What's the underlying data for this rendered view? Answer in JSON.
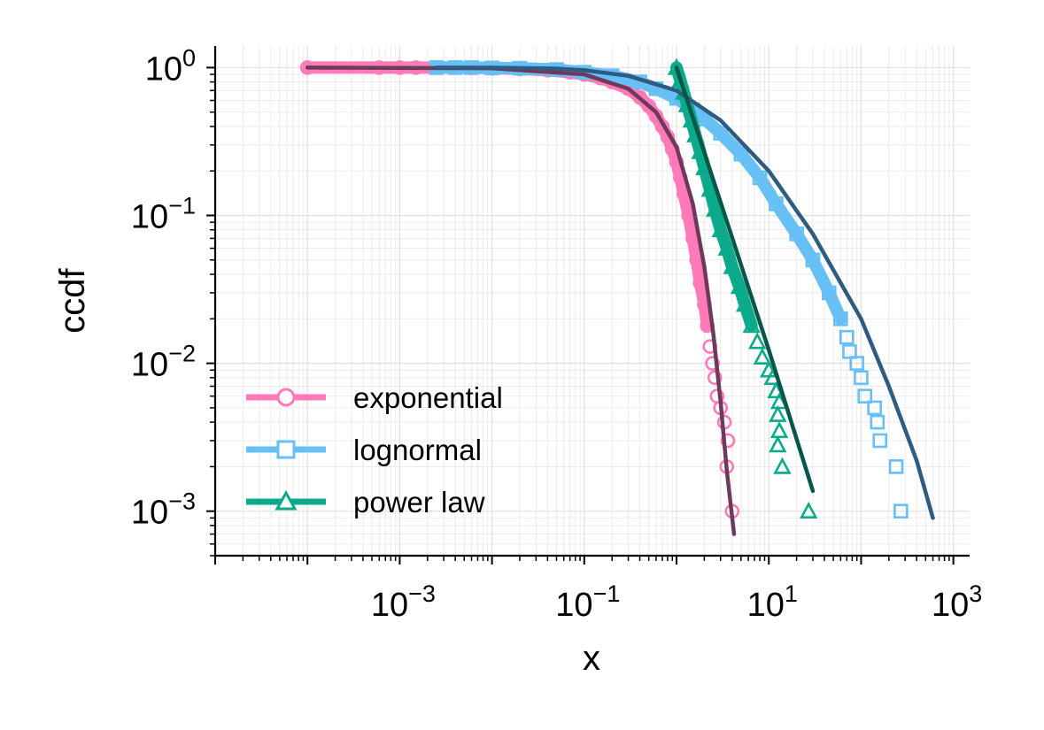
{
  "chart_data": {
    "type": "scatter",
    "xlabel": "x",
    "ylabel": "ccdf",
    "xscale": "log",
    "yscale": "log",
    "xlim": [
      1e-05,
      1500
    ],
    "ylim": [
      0.0005,
      1.4
    ],
    "x_ticks": [
      {
        "base": "10",
        "exp": "−3",
        "value": 0.001
      },
      {
        "base": "10",
        "exp": "−1",
        "value": 0.1
      },
      {
        "base": "10",
        "exp": "1",
        "value": 10
      },
      {
        "base": "10",
        "exp": "3",
        "value": 1000
      }
    ],
    "y_ticks": [
      {
        "base": "10",
        "exp": "0",
        "value": 1
      },
      {
        "base": "10",
        "exp": "−1",
        "value": 0.1
      },
      {
        "base": "10",
        "exp": "−2",
        "value": 0.01
      },
      {
        "base": "10",
        "exp": "−3",
        "value": 0.001
      }
    ],
    "grid": true,
    "legend_position": "lower-left",
    "series": [
      {
        "name": "exponential",
        "marker": "circle",
        "color": "#ff7ab8",
        "fit_color": "#6e3a5c",
        "points": [
          [
            0.0001,
            1.0
          ],
          [
            0.0006,
            1.0
          ],
          [
            0.001,
            1.0
          ],
          [
            0.0015,
            1.0
          ],
          [
            0.0025,
            1.0
          ],
          [
            0.004,
            1.0
          ],
          [
            0.006,
            0.998
          ],
          [
            0.01,
            0.99
          ],
          [
            0.02,
            0.98
          ],
          [
            0.04,
            0.96
          ],
          [
            0.07,
            0.93
          ],
          [
            0.1,
            0.9
          ],
          [
            0.15,
            0.85
          ],
          [
            0.2,
            0.8
          ],
          [
            0.3,
            0.72
          ],
          [
            0.4,
            0.63
          ],
          [
            0.5,
            0.55
          ],
          [
            0.6,
            0.47
          ],
          [
            0.7,
            0.4
          ],
          [
            0.8,
            0.34
          ],
          [
            0.9,
            0.28
          ],
          [
            1.0,
            0.23
          ],
          [
            1.1,
            0.18
          ],
          [
            1.2,
            0.14
          ],
          [
            1.35,
            0.1
          ],
          [
            1.5,
            0.07
          ],
          [
            1.65,
            0.05
          ],
          [
            1.8,
            0.035
          ],
          [
            2.0,
            0.025
          ],
          [
            2.15,
            0.018
          ],
          [
            2.3,
            0.013
          ],
          [
            2.45,
            0.01
          ],
          [
            2.6,
            0.008
          ],
          [
            2.75,
            0.006
          ],
          [
            3.0,
            0.005
          ],
          [
            3.3,
            0.004
          ],
          [
            3.6,
            0.003
          ],
          [
            3.5,
            0.002
          ],
          [
            4.0,
            0.001
          ]
        ],
        "fit": [
          [
            0.0001,
            1.0
          ],
          [
            0.01,
            0.99
          ],
          [
            0.1,
            0.9
          ],
          [
            0.3,
            0.72
          ],
          [
            0.6,
            0.5
          ],
          [
            1.0,
            0.29
          ],
          [
            1.5,
            0.12
          ],
          [
            2.0,
            0.045
          ],
          [
            2.5,
            0.016
          ],
          [
            3.0,
            0.0055
          ],
          [
            3.5,
            0.0019
          ],
          [
            4.2,
            0.0007
          ]
        ]
      },
      {
        "name": "lognormal",
        "marker": "square",
        "color": "#66bff5",
        "fit_color": "#2f5b80",
        "points": [
          [
            0.0025,
            1.0
          ],
          [
            0.004,
            1.0
          ],
          [
            0.006,
            1.0
          ],
          [
            0.01,
            0.995
          ],
          [
            0.02,
            0.99
          ],
          [
            0.05,
            0.97
          ],
          [
            0.1,
            0.93
          ],
          [
            0.2,
            0.88
          ],
          [
            0.4,
            0.8
          ],
          [
            0.6,
            0.72
          ],
          [
            1.0,
            0.62
          ],
          [
            1.5,
            0.52
          ],
          [
            2.0,
            0.45
          ],
          [
            3.0,
            0.36
          ],
          [
            5.0,
            0.26
          ],
          [
            8.0,
            0.18
          ],
          [
            12.0,
            0.12
          ],
          [
            20.0,
            0.075
          ],
          [
            30.0,
            0.05
          ],
          [
            45.0,
            0.03
          ],
          [
            60.0,
            0.02
          ],
          [
            70.0,
            0.015
          ],
          [
            75.0,
            0.012
          ],
          [
            90.0,
            0.01
          ],
          [
            100.0,
            0.008
          ],
          [
            110.0,
            0.006
          ],
          [
            140.0,
            0.005
          ],
          [
            150.0,
            0.004
          ],
          [
            160.0,
            0.003
          ],
          [
            240.0,
            0.002
          ],
          [
            270.0,
            0.001
          ]
        ],
        "fit": [
          [
            0.0025,
            1.0
          ],
          [
            0.01,
            0.999
          ],
          [
            0.05,
            0.985
          ],
          [
            0.1,
            0.96
          ],
          [
            0.3,
            0.88
          ],
          [
            1.0,
            0.7
          ],
          [
            3.0,
            0.44
          ],
          [
            10.0,
            0.2
          ],
          [
            30.0,
            0.075
          ],
          [
            100.0,
            0.02
          ],
          [
            200.0,
            0.007
          ],
          [
            400.0,
            0.0022
          ],
          [
            600.0,
            0.0009
          ]
        ]
      },
      {
        "name": "power law",
        "marker": "triangle",
        "color": "#0aaa8a",
        "fit_color": "#06564a",
        "points": [
          [
            1.0,
            1.0
          ],
          [
            1.1,
            0.82
          ],
          [
            1.2,
            0.68
          ],
          [
            1.3,
            0.56
          ],
          [
            1.45,
            0.44
          ],
          [
            1.6,
            0.35
          ],
          [
            1.8,
            0.27
          ],
          [
            2.0,
            0.21
          ],
          [
            2.3,
            0.15
          ],
          [
            2.6,
            0.11
          ],
          [
            3.0,
            0.08
          ],
          [
            3.5,
            0.06
          ],
          [
            4.0,
            0.045
          ],
          [
            4.8,
            0.033
          ],
          [
            5.5,
            0.025
          ],
          [
            6.5,
            0.018
          ],
          [
            7.5,
            0.014
          ],
          [
            8.5,
            0.011
          ],
          [
            10.0,
            0.009
          ],
          [
            11.0,
            0.008
          ],
          [
            12.0,
            0.0065
          ],
          [
            13.0,
            0.0055
          ],
          [
            12.5,
            0.0045
          ],
          [
            13.0,
            0.0035
          ],
          [
            12.5,
            0.0028
          ],
          [
            14.0,
            0.002
          ],
          [
            27.0,
            0.001
          ]
        ],
        "fit": [
          [
            1.0,
            1.0
          ],
          [
            3.0,
            0.123
          ],
          [
            10.0,
            0.0123
          ],
          [
            30.0,
            0.00137
          ]
        ]
      }
    ]
  }
}
